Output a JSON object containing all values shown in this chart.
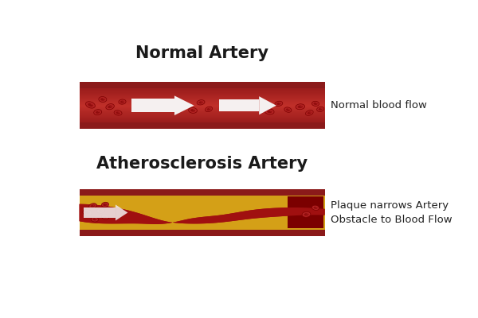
{
  "bg_color": "#ffffff",
  "title1": "Normal Artery",
  "title2": "Atherosclerosis Artery",
  "label1": "Normal blood flow",
  "label2": "Plaque narrows Artery\nObstacle to Blood Flow",
  "title_fontsize": 15,
  "label_fontsize": 9.5,
  "artery_dark_red": "#8B1A1A",
  "artery_border_red": "#9B1C1C",
  "artery_mid_red": "#B22222",
  "artery_bright_red": "#CC2200",
  "rbc_outer": "#B22222",
  "rbc_inner": "#7B0000",
  "rbc_shadow": "#6B0000",
  "plaque_yellow": "#D4A017",
  "plaque_yellow2": "#C8960C",
  "arrow_white": "#F5F0F0",
  "channel_red": "#A01010"
}
